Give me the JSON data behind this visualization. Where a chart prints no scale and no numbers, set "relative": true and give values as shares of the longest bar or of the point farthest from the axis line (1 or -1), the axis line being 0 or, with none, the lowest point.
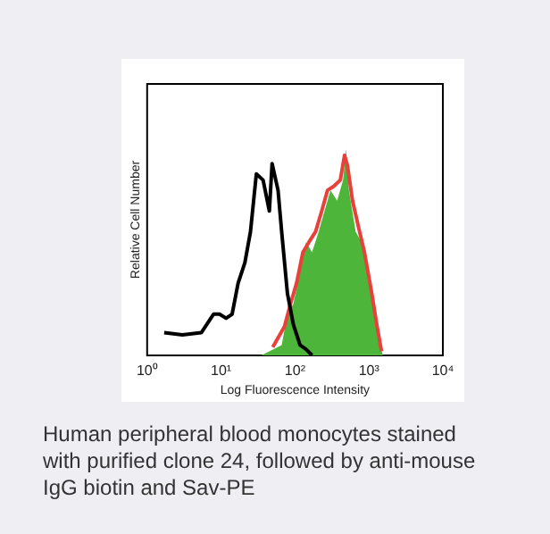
{
  "chart_data": {
    "type": "line",
    "xlabel": "Log Fluorescence Intensity",
    "ylabel": "Relative Cell Number",
    "relative": true,
    "log": "x",
    "xlim": [
      1,
      10000
    ],
    "xticks": [
      {
        "value": 1,
        "label": "10⁰"
      },
      {
        "value": 10,
        "label": "10¹"
      },
      {
        "value": 100,
        "label": "10²"
      },
      {
        "value": 1000,
        "label": "10³"
      },
      {
        "value": 10000,
        "label": "10⁴"
      }
    ],
    "grid": false,
    "legend": false,
    "marker": "none",
    "series": [
      {
        "type": "area",
        "color": "#4db53a",
        "x": [
          35,
          66,
          79,
          95,
          117,
          141,
          170,
          209,
          251,
          302,
          372,
          447,
          490,
          537,
          661,
          794,
          955,
          1175,
          1413,
          1550
        ],
        "values": [
          0,
          0.05,
          0.2,
          0.25,
          0.4,
          0.55,
          0.5,
          0.6,
          0.7,
          0.8,
          0.75,
          0.85,
          1.0,
          0.8,
          0.6,
          0.55,
          0.4,
          0.2,
          0.05,
          0
        ]
      },
      {
        "color": "#e8403a",
        "x": [
          50,
          72,
          87,
          105,
          128,
          155,
          190,
          230,
          275,
          335,
          410,
          468,
          513,
          600,
          725,
          870,
          1070,
          1290,
          1480
        ],
        "values": [
          0.04,
          0.14,
          0.25,
          0.35,
          0.5,
          0.55,
          0.6,
          0.7,
          0.8,
          0.82,
          0.85,
          0.97,
          0.92,
          0.75,
          0.62,
          0.5,
          0.32,
          0.14,
          0.02
        ]
      },
      {
        "color": "#000000",
        "x": [
          1.7,
          3.0,
          5.4,
          7.9,
          9.5,
          11.7,
          14.1,
          17,
          21,
          25,
          30,
          37,
          45,
          49,
          59,
          66,
          79,
          95,
          117,
          141,
          170
        ],
        "values": [
          0.11,
          0.1,
          0.11,
          0.2,
          0.2,
          0.18,
          0.2,
          0.35,
          0.45,
          0.6,
          0.88,
          0.85,
          0.7,
          0.93,
          0.8,
          0.6,
          0.3,
          0.15,
          0.05,
          0.03,
          0
        ]
      }
    ],
    "annotations": [
      "Human peripheral blood monocytes stained with purified clone 24, followed by anti-mouse IgG biotin and Sav-PE"
    ]
  }
}
